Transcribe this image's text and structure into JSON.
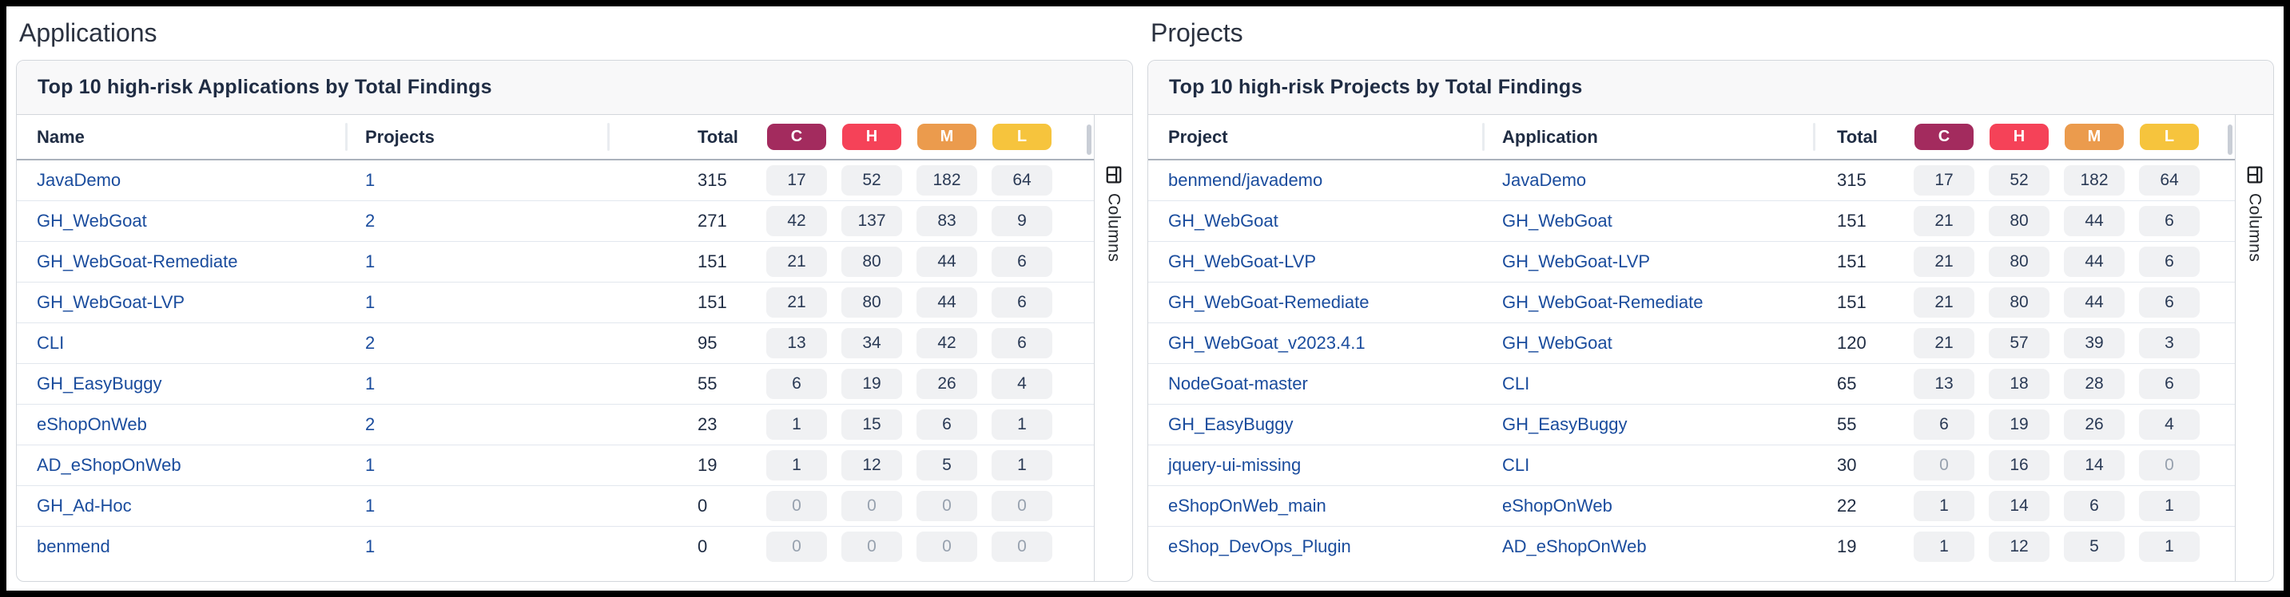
{
  "labels": {
    "columns": "Columns"
  },
  "severities": [
    {
      "label": "C",
      "color": "#a32b5e"
    },
    {
      "label": "H",
      "color": "#f54258"
    },
    {
      "label": "M",
      "color": "#eb9b4d"
    },
    {
      "label": "L",
      "color": "#f6c43d"
    }
  ],
  "chip_bg": "#f0f1f3",
  "link_color": "#1a4c9d",
  "applications": {
    "section_title": "Applications",
    "card_title": "Top 10 high-risk Applications by Total Findings",
    "col_name": "Name",
    "col_projects": "Projects",
    "col_total": "Total",
    "rows": [
      {
        "name": "JavaDemo",
        "projects": "1",
        "total": "315",
        "c": "17",
        "h": "52",
        "m": "182",
        "l": "64"
      },
      {
        "name": "GH_WebGoat",
        "projects": "2",
        "total": "271",
        "c": "42",
        "h": "137",
        "m": "83",
        "l": "9"
      },
      {
        "name": "GH_WebGoat-Remediate",
        "projects": "1",
        "total": "151",
        "c": "21",
        "h": "80",
        "m": "44",
        "l": "6"
      },
      {
        "name": "GH_WebGoat-LVP",
        "projects": "1",
        "total": "151",
        "c": "21",
        "h": "80",
        "m": "44",
        "l": "6"
      },
      {
        "name": "CLI",
        "projects": "2",
        "total": "95",
        "c": "13",
        "h": "34",
        "m": "42",
        "l": "6"
      },
      {
        "name": "GH_EasyBuggy",
        "projects": "1",
        "total": "55",
        "c": "6",
        "h": "19",
        "m": "26",
        "l": "4"
      },
      {
        "name": "eShopOnWeb",
        "projects": "2",
        "total": "23",
        "c": "1",
        "h": "15",
        "m": "6",
        "l": "1"
      },
      {
        "name": "AD_eShopOnWeb",
        "projects": "1",
        "total": "19",
        "c": "1",
        "h": "12",
        "m": "5",
        "l": "1"
      },
      {
        "name": "GH_Ad-Hoc",
        "projects": "1",
        "total": "0",
        "c": "0",
        "h": "0",
        "m": "0",
        "l": "0"
      },
      {
        "name": "benmend",
        "projects": "1",
        "total": "0",
        "c": "0",
        "h": "0",
        "m": "0",
        "l": "0"
      }
    ]
  },
  "projects": {
    "section_title": "Projects",
    "card_title": "Top 10 high-risk Projects by Total Findings",
    "col_project": "Project",
    "col_application": "Application",
    "col_total": "Total",
    "rows": [
      {
        "project": "benmend/javademo",
        "application": "JavaDemo",
        "total": "315",
        "c": "17",
        "h": "52",
        "m": "182",
        "l": "64"
      },
      {
        "project": "GH_WebGoat",
        "application": "GH_WebGoat",
        "total": "151",
        "c": "21",
        "h": "80",
        "m": "44",
        "l": "6"
      },
      {
        "project": "GH_WebGoat-LVP",
        "application": "GH_WebGoat-LVP",
        "total": "151",
        "c": "21",
        "h": "80",
        "m": "44",
        "l": "6"
      },
      {
        "project": "GH_WebGoat-Remediate",
        "application": "GH_WebGoat-Remediate",
        "total": "151",
        "c": "21",
        "h": "80",
        "m": "44",
        "l": "6"
      },
      {
        "project": "GH_WebGoat_v2023.4.1",
        "application": "GH_WebGoat",
        "total": "120",
        "c": "21",
        "h": "57",
        "m": "39",
        "l": "3"
      },
      {
        "project": "NodeGoat-master",
        "application": "CLI",
        "total": "65",
        "c": "13",
        "h": "18",
        "m": "28",
        "l": "6"
      },
      {
        "project": "GH_EasyBuggy",
        "application": "GH_EasyBuggy",
        "total": "55",
        "c": "6",
        "h": "19",
        "m": "26",
        "l": "4"
      },
      {
        "project": "jquery-ui-missing",
        "application": "CLI",
        "total": "30",
        "c": "0",
        "h": "16",
        "m": "14",
        "l": "0"
      },
      {
        "project": "eShopOnWeb_main",
        "application": "eShopOnWeb",
        "total": "22",
        "c": "1",
        "h": "14",
        "m": "6",
        "l": "1"
      },
      {
        "project": "eShop_DevOps_Plugin",
        "application": "AD_eShopOnWeb",
        "total": "19",
        "c": "1",
        "h": "12",
        "m": "5",
        "l": "1"
      }
    ]
  }
}
